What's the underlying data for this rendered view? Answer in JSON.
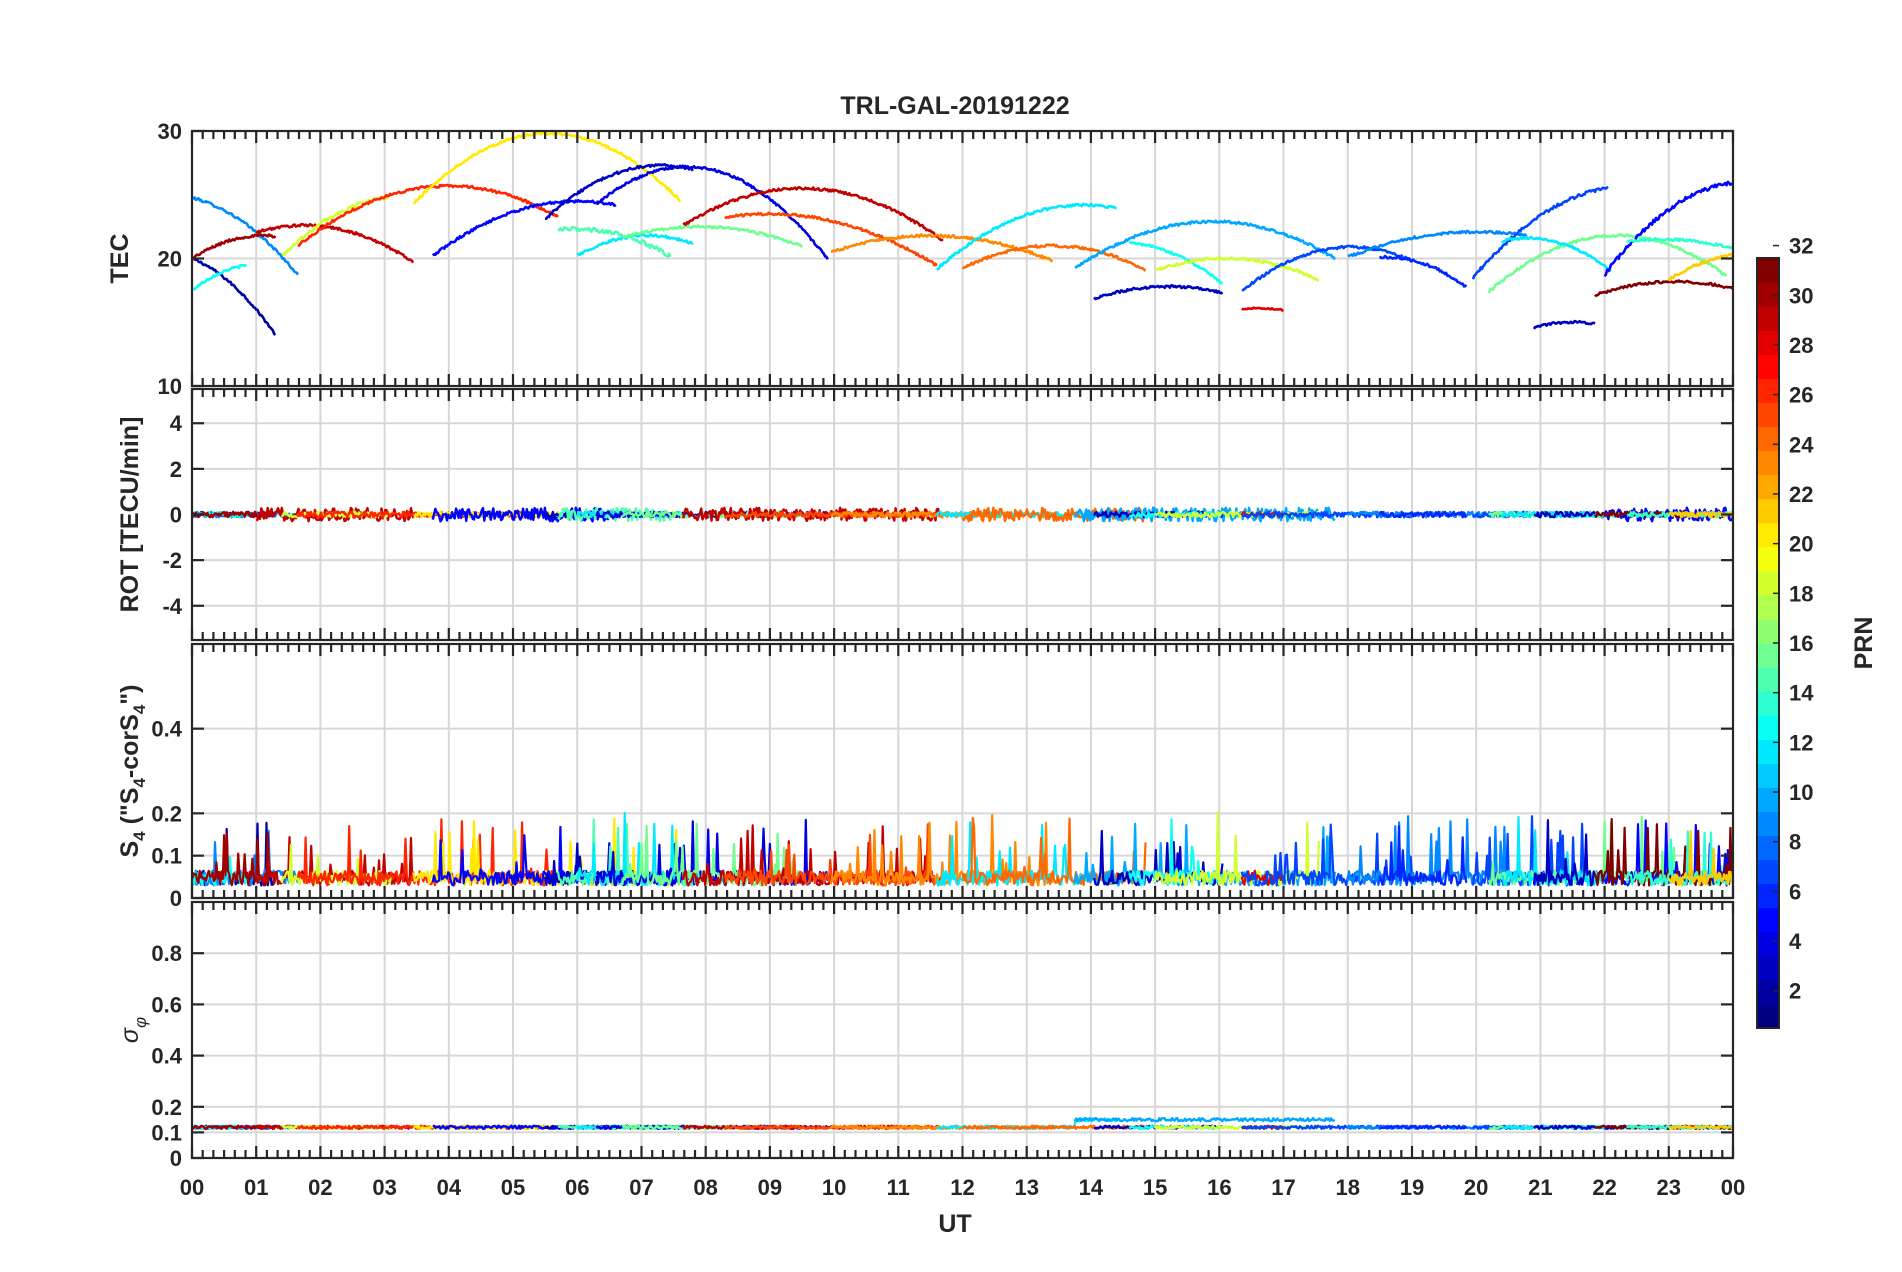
{
  "chart_data": {
    "type": "line",
    "title": "TRL-GAL-20191222",
    "xlabel": "UT",
    "x_range": [
      0,
      24
    ],
    "x_tick_labels": [
      "00",
      "01",
      "02",
      "03",
      "04",
      "05",
      "06",
      "07",
      "08",
      "09",
      "10",
      "11",
      "12",
      "13",
      "14",
      "15",
      "16",
      "17",
      "18",
      "19",
      "20",
      "21",
      "22",
      "23",
      "00"
    ],
    "panels": [
      {
        "id": "tec",
        "ylabel": "TEC",
        "ylim": [
          10,
          30
        ],
        "yticks": [
          10,
          20,
          30
        ],
        "ytick_labels": [
          "10",
          "20",
          "30"
        ],
        "arcs": [
          {
            "prn": 2,
            "start": 0.0,
            "end": 1.3,
            "peak_t": -0.5,
            "peak": 20.5,
            "curv": 2.0,
            "noise": 0.2
          },
          {
            "prn": 9,
            "start": 0.0,
            "end": 1.65,
            "peak_t": -0.4,
            "peak": 25.0,
            "curv": 1.5,
            "noise": 0.2
          },
          {
            "prn": 13,
            "start": 0.0,
            "end": 0.85,
            "peak_t": 1.0,
            "peak": 19.5,
            "curv": 2.0,
            "noise": 0.2
          },
          {
            "prn": 31,
            "start": 0.0,
            "end": 1.3,
            "peak_t": 1.1,
            "peak": 21.8,
            "curv": 1.5,
            "noise": 0.2
          },
          {
            "prn": 30,
            "start": 1.0,
            "end": 3.45,
            "peak_t": 1.75,
            "peak": 22.6,
            "curv": 1.0,
            "noise": 0.2
          },
          {
            "prn": 19,
            "start": 1.4,
            "end": 3.1,
            "peak_t": 3.3,
            "peak": 24.9,
            "curv": 1.3,
            "noise": 0.3
          },
          {
            "prn": 27,
            "start": 1.65,
            "end": 5.7,
            "peak_t": 4.0,
            "peak": 25.7,
            "curv": 0.85,
            "noise": 0.2
          },
          {
            "prn": 21,
            "start": 3.45,
            "end": 7.6,
            "peak_t": 5.55,
            "peak": 29.8,
            "curv": 1.25,
            "noise": 0.2
          },
          {
            "prn": 5,
            "start": 3.75,
            "end": 6.6,
            "peak_t": 6.0,
            "peak": 24.5,
            "curv": 0.85,
            "noise": 0.2
          },
          {
            "prn": 3,
            "start": 5.5,
            "end": 7.8,
            "peak_t": 7.3,
            "peak": 27.3,
            "curv": 1.3,
            "noise": 0.2
          },
          {
            "prn": 15,
            "start": 5.7,
            "end": 7.45,
            "peak_t": 6.0,
            "peak": 22.3,
            "curv": 1.0,
            "noise": 0.35
          },
          {
            "prn": 12,
            "start": 6.0,
            "end": 7.8,
            "peak_t": 7.1,
            "peak": 21.8,
            "curv": 1.3,
            "noise": 0.2
          },
          {
            "prn": 4,
            "start": 6.3,
            "end": 9.9,
            "peak_t": 7.7,
            "peak": 27.2,
            "curv": 1.5,
            "noise": 0.2
          },
          {
            "prn": 16,
            "start": 6.7,
            "end": 9.5,
            "peak_t": 7.9,
            "peak": 22.5,
            "curv": 0.6,
            "noise": 0.2
          },
          {
            "prn": 30,
            "start": 7.65,
            "end": 11.7,
            "peak_t": 9.5,
            "peak": 25.5,
            "curv": 0.85,
            "noise": 0.2
          },
          {
            "prn": 26,
            "start": 8.3,
            "end": 11.6,
            "peak_t": 9.0,
            "peak": 23.5,
            "curv": 0.6,
            "noise": 0.2
          },
          {
            "prn": 24,
            "start": 9.95,
            "end": 13.4,
            "peak_t": 11.5,
            "peak": 21.8,
            "curv": 0.55,
            "noise": 0.2
          },
          {
            "prn": 12,
            "start": 11.6,
            "end": 14.4,
            "peak_t": 13.9,
            "peak": 24.2,
            "curv": 0.95,
            "noise": 0.2
          },
          {
            "prn": 25,
            "start": 12.0,
            "end": 14.85,
            "peak_t": 13.4,
            "peak": 21.0,
            "curv": 0.9,
            "noise": 0.2
          },
          {
            "prn": 10,
            "start": 13.75,
            "end": 17.8,
            "peak_t": 15.9,
            "peak": 22.9,
            "curv": 0.8,
            "noise": 0.2
          },
          {
            "prn": 3,
            "start": 14.05,
            "end": 16.05,
            "peak_t": 15.2,
            "peak": 17.8,
            "curv": 0.7,
            "noise": 0.2
          },
          {
            "prn": 13,
            "start": 14.6,
            "end": 16.05,
            "peak_t": 14.4,
            "peak": 21.3,
            "curv": 1.2,
            "noise": 0.2
          },
          {
            "prn": 19,
            "start": 15.0,
            "end": 17.55,
            "peak_t": 16.1,
            "peak": 20.0,
            "curv": 0.8,
            "noise": 0.2
          },
          {
            "prn": 29,
            "start": 16.35,
            "end": 17.0,
            "peak_t": 16.6,
            "peak": 16.1,
            "curv": 1.0,
            "noise": 0.1
          },
          {
            "prn": 7,
            "start": 16.35,
            "end": 19.0,
            "peak_t": 18.05,
            "peak": 20.9,
            "curv": 1.2,
            "noise": 0.2
          },
          {
            "prn": 9,
            "start": 18.0,
            "end": 20.8,
            "peak_t": 20.0,
            "peak": 22.1,
            "curv": 0.5,
            "noise": 0.2
          },
          {
            "prn": 6,
            "start": 18.5,
            "end": 19.85,
            "peak_t": 18.6,
            "peak": 20.1,
            "curv": 1.5,
            "noise": 0.2
          },
          {
            "prn": 7,
            "start": 19.95,
            "end": 22.05,
            "peak_t": 22.4,
            "peak": 25.7,
            "curv": 1.2,
            "noise": 0.25
          },
          {
            "prn": 16,
            "start": 20.2,
            "end": 23.9,
            "peak_t": 22.2,
            "peak": 21.8,
            "curv": 1.1,
            "noise": 0.2
          },
          {
            "prn": 12,
            "start": 20.4,
            "end": 22.1,
            "peak_t": 20.8,
            "peak": 21.6,
            "curv": 1.5,
            "noise": 0.2
          },
          {
            "prn": 3,
            "start": 20.9,
            "end": 21.85,
            "peak_t": 21.5,
            "peak": 15.0,
            "curv": 1.2,
            "noise": 0.2
          },
          {
            "prn": 5,
            "start": 22.0,
            "end": 24.0,
            "peak_t": 24.2,
            "peak": 26.0,
            "curv": 1.5,
            "noise": 0.3
          },
          {
            "prn": 32,
            "start": 21.85,
            "end": 24.0,
            "peak_t": 23.1,
            "peak": 18.2,
            "curv": 0.7,
            "noise": 0.2
          },
          {
            "prn": 14,
            "start": 22.35,
            "end": 24.0,
            "peak_t": 22.9,
            "peak": 21.5,
            "curv": 0.6,
            "noise": 0.2
          },
          {
            "prn": 22,
            "start": 23.0,
            "end": 24.0,
            "peak_t": 24.4,
            "peak": 20.5,
            "curv": 1.1,
            "noise": 0.2
          }
        ]
      },
      {
        "id": "rot",
        "ylabel": "ROT [TECU/min]",
        "ylim": [
          -5.5,
          5.5
        ],
        "yticks": [
          -4,
          -2,
          0,
          2,
          4
        ],
        "ytick_labels": [
          "-4",
          "-2",
          "0",
          "2",
          "4"
        ],
        "baseline": 0.0,
        "typical_amplitude": 0.12
      },
      {
        "id": "s4",
        "ylabel": "S4 (\"S4-corS4\")",
        "ylabel_parts": {
          "main": "S",
          "sub": "4",
          "paren_open": " (\"",
          "mid": "-corS",
          "paren_close": "\")"
        },
        "ylim": [
          0,
          0.6
        ],
        "yticks": [
          0,
          0.1,
          0.2,
          0.4
        ],
        "ytick_labels": [
          "0",
          "0.1",
          "0.2",
          "0.4"
        ],
        "baseline": 0.04,
        "typical_max": 0.18
      },
      {
        "id": "sigma_phi",
        "ylabel": "σφ",
        "ylabel_parts": {
          "main": "σ",
          "sub": "φ"
        },
        "ylim": [
          0,
          1.0
        ],
        "yticks": [
          0,
          0.1,
          0.2,
          0.4,
          0.6,
          0.8
        ],
        "ytick_labels": [
          "0",
          "0.1",
          "0.2",
          "0.4",
          "0.6",
          "0.8"
        ],
        "baseline": 0.12,
        "elevated_interval": [
          13.75,
          18.05
        ],
        "elevated_value": 0.15
      }
    ],
    "colorbar": {
      "label": "PRN",
      "range": [
        1,
        32
      ],
      "ticks": [
        2,
        4,
        6,
        8,
        10,
        12,
        14,
        16,
        18,
        20,
        22,
        24,
        26,
        28,
        30,
        32
      ],
      "tick_labels": [
        "2",
        "4",
        "6",
        "8",
        "10",
        "12",
        "14",
        "16",
        "18",
        "20",
        "22",
        "24",
        "26",
        "28",
        "30",
        "32"
      ],
      "colormap": "jet"
    }
  }
}
